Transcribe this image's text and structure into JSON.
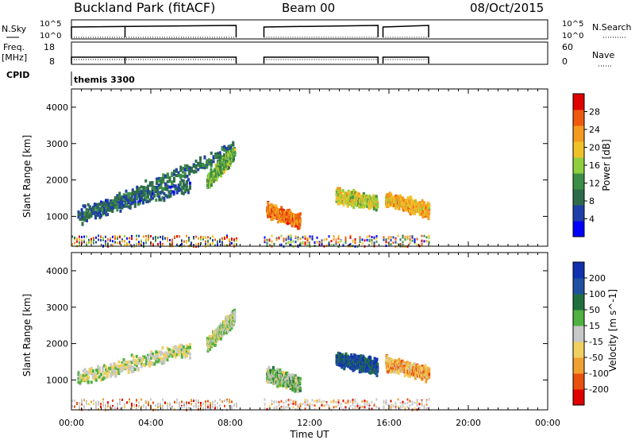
{
  "header": {
    "station": "Buckland Park (fitACF)",
    "beam": "Beam 00",
    "date": "08/Oct/2015"
  },
  "noise_panel": {
    "left_label": "N.Sky",
    "right_label": "N.Search",
    "left_ticks": [
      "10^5",
      "10^0"
    ],
    "right_ticks": [
      "10^5",
      "10^0"
    ]
  },
  "freq_panel": {
    "left_label_1": "Freq.",
    "left_label_2": "[MHz]",
    "right_label": "Nave",
    "left_ticks": [
      "18",
      "8"
    ],
    "right_ticks": [
      "60",
      "0"
    ]
  },
  "cpid_panel": {
    "label": "CPID",
    "value": "themis 3300"
  },
  "colors": {
    "power_scale": [
      "#0000ff",
      "#1f3fa8",
      "#2f6b4a",
      "#3c8e46",
      "#8fcf3f",
      "#f0c22a",
      "#f39a1f",
      "#ee5a10",
      "#e00000"
    ],
    "velocity_scale": [
      "#1030b0",
      "#2050a0",
      "#1f6f3f",
      "#50b040",
      "#c8c8c8",
      "#f0d060",
      "#f0a030",
      "#e85010",
      "#e00000"
    ]
  },
  "chart_data": [
    {
      "type": "heatmap",
      "name": "power",
      "ylabel": "Slant Range [km]",
      "y_ticks": [
        "1000",
        "2000",
        "3000",
        "4000"
      ],
      "ylim": [
        180,
        4500
      ],
      "xlim": [
        0,
        24
      ],
      "colorbar_label": "Power [dB]",
      "colorbar_ticks": [
        "4",
        "8",
        "12",
        "16",
        "20",
        "24",
        "28"
      ],
      "colorbar_range": [
        0,
        32
      ],
      "observation_blocks": [
        [
          0,
          8.3
        ],
        [
          9.7,
          15.45
        ],
        [
          15.7,
          18.0
        ]
      ],
      "features": [
        {
          "t_start": 0.3,
          "t_end": 6.0,
          "range_start": 1100,
          "range_end": 1900,
          "power": 6
        },
        {
          "t_start": 0.5,
          "t_end": 8.2,
          "range_start": 1000,
          "range_end": 2900,
          "power": 8
        },
        {
          "t_start": 6.8,
          "t_end": 8.2,
          "range_start": 2000,
          "range_end": 2800,
          "power": 14
        },
        {
          "t_start": 9.8,
          "t_end": 11.5,
          "range_start": 1200,
          "range_end": 900,
          "power": 26
        },
        {
          "t_start": 13.3,
          "t_end": 15.4,
          "range_start": 1600,
          "range_end": 1400,
          "power": 18
        },
        {
          "t_start": 15.8,
          "t_end": 18.0,
          "range_start": 1500,
          "range_end": 1200,
          "power": 22
        }
      ]
    },
    {
      "type": "heatmap",
      "name": "velocity",
      "ylabel": "Slant Range [km]",
      "y_ticks": [
        "1000",
        "2000",
        "3000",
        "4000"
      ],
      "ylim": [
        180,
        4500
      ],
      "xlim": [
        0,
        24
      ],
      "colorbar_label": "Velocity [m s^-1]",
      "colorbar_ticks": [
        "200",
        "100",
        "50",
        "15",
        "-15",
        "-50",
        "-100",
        "-200"
      ],
      "x_ticks": [
        "00:00",
        "04:00",
        "08:00",
        "12:00",
        "16:00",
        "20:00",
        "00:00"
      ],
      "xlabel": "Time UT",
      "features": [
        {
          "t_start": 0.3,
          "t_end": 6.0,
          "range_start": 1100,
          "range_end": 1900,
          "velocity": 0
        },
        {
          "t_start": 6.8,
          "t_end": 8.2,
          "range_start": 2000,
          "range_end": 2800,
          "velocity": 0
        },
        {
          "t_start": 9.8,
          "t_end": 11.5,
          "range_start": 1200,
          "range_end": 900,
          "velocity": 30
        },
        {
          "t_start": 13.3,
          "t_end": 15.4,
          "range_start": 1600,
          "range_end": 1400,
          "velocity": 150
        },
        {
          "t_start": 15.8,
          "t_end": 18.0,
          "range_start": 1500,
          "range_end": 1200,
          "velocity": -80
        }
      ]
    }
  ]
}
